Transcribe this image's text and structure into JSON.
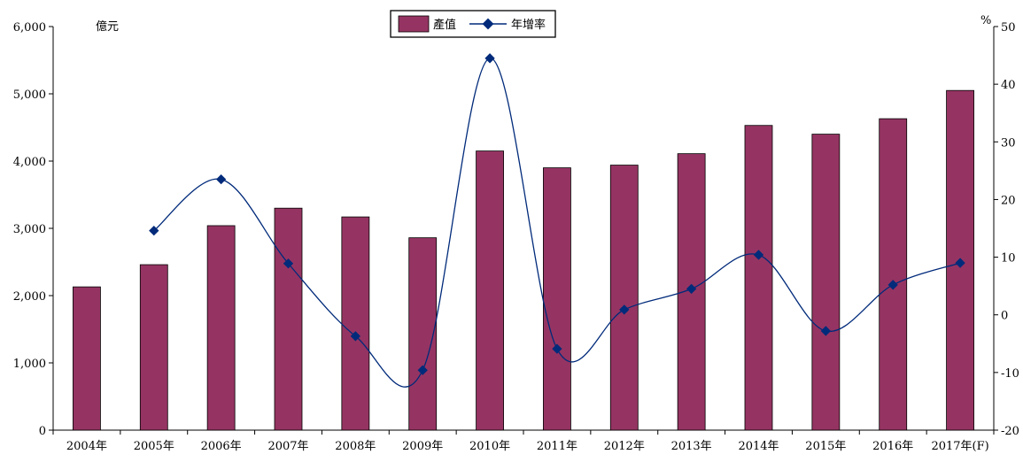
{
  "chart_data": {
    "type": "bar+line",
    "categories": [
      "2004年",
      "2005年",
      "2006年",
      "2007年",
      "2008年",
      "2009年",
      "2010年",
      "2011年",
      "2012年",
      "2013年",
      "2014年",
      "2015年",
      "2016年",
      "2017年(F)"
    ],
    "series": [
      {
        "name": "產值",
        "type": "bar",
        "axis": "left",
        "color": "#953462",
        "values": [
          2130,
          2460,
          3040,
          3300,
          3170,
          2860,
          4150,
          3900,
          3940,
          4110,
          4530,
          4400,
          4630,
          5050
        ]
      },
      {
        "name": "年增率",
        "type": "line",
        "axis": "right",
        "color": "#002A7A",
        "values": [
          null,
          14.6,
          23.5,
          8.9,
          -3.7,
          -9.6,
          44.5,
          -5.9,
          0.9,
          4.5,
          10.4,
          -2.8,
          5.2,
          9.0
        ]
      }
    ],
    "yleft": {
      "label": "億元",
      "ylim": [
        0,
        6000
      ],
      "ticks": [
        "0",
        "1,000",
        "2,000",
        "3,000",
        "4,000",
        "5,000",
        "6,000"
      ],
      "tickValues": [
        0,
        1000,
        2000,
        3000,
        4000,
        5000,
        6000
      ]
    },
    "yright": {
      "label": "%",
      "ylim": [
        -20,
        50
      ],
      "ticks": [
        "-20",
        "-10",
        "0",
        "10",
        "20",
        "30",
        "40",
        "50"
      ],
      "tickValues": [
        -20,
        -10,
        0,
        10,
        20,
        30,
        40,
        50
      ]
    },
    "legend": {
      "position": "top-center"
    },
    "grid": false
  }
}
